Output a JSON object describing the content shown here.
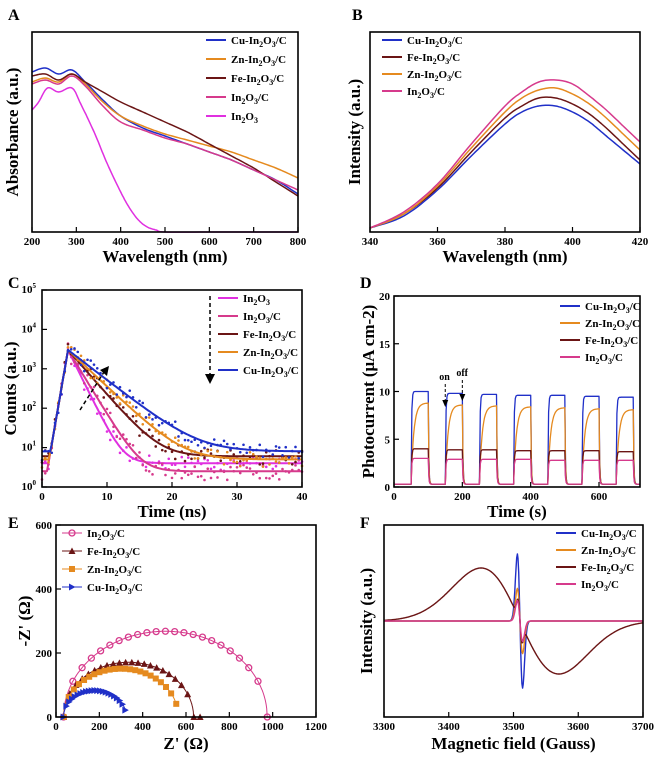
{
  "figure": {
    "panels": [
      "A",
      "B",
      "C",
      "D",
      "E",
      "F"
    ]
  },
  "colors": {
    "Cu": "#2030c8",
    "Zn": "#e58a1f",
    "Fe": "#6b1515",
    "InC": "#d63a8c",
    "In2O3": "#e030e0",
    "axis": "#000000"
  },
  "chart_data": [
    {
      "panel": "A",
      "type": "line",
      "xlabel": "Wavelength (nm)",
      "ylabel": "Absorbance (a.u.)",
      "xlim": [
        200,
        800
      ],
      "ylim": [
        0,
        1.0
      ],
      "xticks": [
        "200",
        "300",
        "400",
        "500",
        "600",
        "700",
        "800"
      ],
      "series": [
        {
          "key": "Cu",
          "name": "Cu-In2O3/C",
          "x": [
            200,
            230,
            260,
            290,
            320,
            360,
            400,
            450,
            500,
            550,
            600,
            650,
            700,
            750,
            800
          ],
          "y": [
            0.8,
            0.82,
            0.79,
            0.81,
            0.75,
            0.66,
            0.58,
            0.52,
            0.48,
            0.44,
            0.4,
            0.36,
            0.31,
            0.26,
            0.19
          ]
        },
        {
          "key": "Zn",
          "name": "Zn-In2O3/C",
          "x": [
            200,
            230,
            260,
            290,
            320,
            360,
            400,
            450,
            500,
            550,
            600,
            650,
            700,
            750,
            800
          ],
          "y": [
            0.75,
            0.77,
            0.75,
            0.79,
            0.74,
            0.65,
            0.58,
            0.53,
            0.49,
            0.46,
            0.43,
            0.4,
            0.36,
            0.32,
            0.27
          ]
        },
        {
          "key": "Fe",
          "name": "Fe-In2O3/C",
          "x": [
            200,
            230,
            260,
            290,
            320,
            360,
            400,
            450,
            500,
            550,
            600,
            650,
            700,
            750,
            800
          ],
          "y": [
            0.78,
            0.79,
            0.76,
            0.79,
            0.75,
            0.7,
            0.65,
            0.6,
            0.55,
            0.5,
            0.44,
            0.38,
            0.32,
            0.25,
            0.18
          ]
        },
        {
          "key": "InC",
          "name": "In2O3/C",
          "x": [
            200,
            230,
            260,
            290,
            320,
            360,
            400,
            450,
            500,
            550,
            600,
            650,
            700,
            750,
            800
          ],
          "y": [
            0.74,
            0.76,
            0.74,
            0.78,
            0.73,
            0.63,
            0.55,
            0.51,
            0.47,
            0.44,
            0.4,
            0.36,
            0.31,
            0.26,
            0.21
          ]
        },
        {
          "key": "In2O3",
          "name": "In2O3",
          "x": [
            200,
            215,
            235,
            260,
            290,
            310,
            340,
            370,
            400,
            420,
            440,
            460,
            480,
            500,
            600,
            700,
            800
          ],
          "y": [
            0.61,
            0.65,
            0.72,
            0.7,
            0.72,
            0.64,
            0.5,
            0.34,
            0.2,
            0.12,
            0.06,
            0.025,
            0.01,
            0.0,
            0.0,
            0.0,
            0.0
          ]
        }
      ]
    },
    {
      "panel": "B",
      "type": "line",
      "xlabel": "Wavelength (nm)",
      "ylabel": "Intensity (a.u.)",
      "xlim": [
        340,
        420
      ],
      "ylim": [
        0,
        1.0
      ],
      "xticks": [
        "340",
        "360",
        "380",
        "400",
        "420"
      ],
      "series": [
        {
          "key": "Cu",
          "name": "Cu-In2O3/C",
          "peak": 0.63,
          "x": [
            340,
            350,
            360,
            370,
            380,
            385,
            390,
            395,
            400,
            405,
            410,
            415,
            420
          ],
          "y": [
            0.02,
            0.08,
            0.21,
            0.38,
            0.54,
            0.6,
            0.63,
            0.63,
            0.6,
            0.55,
            0.48,
            0.41,
            0.34
          ]
        },
        {
          "key": "Fe",
          "name": "Fe-In2O3/C",
          "x": [
            340,
            350,
            360,
            370,
            380,
            385,
            390,
            395,
            400,
            405,
            410,
            415,
            420
          ],
          "y": [
            0.02,
            0.09,
            0.22,
            0.4,
            0.57,
            0.63,
            0.67,
            0.67,
            0.64,
            0.59,
            0.52,
            0.44,
            0.36
          ]
        },
        {
          "key": "Zn",
          "name": "Zn-In2O3/C",
          "x": [
            340,
            350,
            360,
            370,
            380,
            385,
            390,
            395,
            400,
            405,
            410,
            415,
            420
          ],
          "y": [
            0.02,
            0.09,
            0.23,
            0.42,
            0.6,
            0.67,
            0.71,
            0.72,
            0.69,
            0.64,
            0.57,
            0.49,
            0.41
          ]
        },
        {
          "key": "InC",
          "name": "In2O3/C",
          "x": [
            340,
            350,
            360,
            370,
            380,
            385,
            390,
            395,
            400,
            405,
            410,
            415,
            420
          ],
          "y": [
            0.02,
            0.1,
            0.24,
            0.44,
            0.63,
            0.7,
            0.75,
            0.76,
            0.74,
            0.68,
            0.61,
            0.53,
            0.45
          ]
        }
      ]
    },
    {
      "panel": "C",
      "type": "line",
      "xlabel": "Time (ns)",
      "ylabel": "Counts (a.u.)",
      "yscale": "log",
      "xlim": [
        0,
        40
      ],
      "ylim": [
        1,
        100000
      ],
      "xticks": [
        "0",
        "10",
        "20",
        "30",
        "40"
      ],
      "yticks": [
        {
          "base": "10",
          "exp": "0",
          "v": 1
        },
        {
          "base": "10",
          "exp": "1",
          "v": 10
        },
        {
          "base": "10",
          "exp": "2",
          "v": 100
        },
        {
          "base": "10",
          "exp": "3",
          "v": 1000
        },
        {
          "base": "10",
          "exp": "4",
          "v": 10000
        },
        {
          "base": "10",
          "exp": "5",
          "v": 100000
        }
      ],
      "peak": {
        "t": 4,
        "counts": 3000
      },
      "series": [
        {
          "key": "In2O3",
          "name": "In2O3",
          "tau": 1.3,
          "floor": 4
        },
        {
          "key": "InC",
          "name": "In2O3/C",
          "tau": 1.6,
          "floor": 2.5
        },
        {
          "key": "Fe",
          "name": "Fe-In2O3/C",
          "tau": 2.3,
          "floor": 6
        },
        {
          "key": "Zn",
          "name": "Zn-In2O3/C",
          "tau": 2.8,
          "floor": 5
        },
        {
          "key": "Cu",
          "name": "Cu-In2O3/C",
          "tau": 3.4,
          "floor": 8
        }
      ]
    },
    {
      "panel": "D",
      "type": "line",
      "xlabel": "Time (s)",
      "ylabel": "Photocurrent (μA cm-2)",
      "xlim": [
        0,
        720
      ],
      "ylim": [
        0,
        20
      ],
      "xticks": [
        "0",
        "200",
        "400",
        "600"
      ],
      "yticks": [
        "0",
        "5",
        "10",
        "15",
        "20"
      ],
      "period": 100,
      "on_duration": 50,
      "first_on": 50,
      "annotations": {
        "on": "on",
        "off": "off",
        "on_time": 150,
        "off_time": 200
      },
      "series": [
        {
          "key": "Cu",
          "name": "Cu-In2O3/C",
          "plateaus": [
            10.0,
            9.8,
            9.7,
            9.6,
            9.6,
            9.5,
            9.4
          ]
        },
        {
          "key": "Zn",
          "name": "Zn-In2O3/C",
          "plateaus": [
            8.8,
            8.6,
            8.5,
            8.4,
            8.3,
            8.2,
            8.1
          ]
        },
        {
          "key": "Fe",
          "name": "Fe-In2O3/C",
          "plateaus": [
            4.0,
            3.9,
            3.9,
            3.8,
            3.8,
            3.8,
            3.7
          ]
        },
        {
          "key": "InC",
          "name": "In2O3/C",
          "plateaus": [
            3.0,
            2.9,
            2.9,
            2.9,
            2.8,
            2.8,
            2.8
          ]
        }
      ]
    },
    {
      "panel": "E",
      "type": "scatter",
      "xlabel": "Z' (Ω)",
      "ylabel": "-Z' (Ω)",
      "xlim": [
        0,
        1200
      ],
      "ylim": [
        0,
        600
      ],
      "xticks": [
        "0",
        "200",
        "400",
        "600",
        "800",
        "1000",
        "1200"
      ],
      "yticks": [
        "0",
        "200",
        "400",
        "600"
      ],
      "series": [
        {
          "key": "InC",
          "name": "In2O3/C",
          "marker": "circle",
          "center": 505,
          "radius": 470,
          "start": 35,
          "end": 975
        },
        {
          "key": "Fe",
          "name": "Fe-In2O3/C",
          "marker": "triangle-up",
          "center": 335,
          "radius": 300,
          "start": 35,
          "end": 665
        },
        {
          "key": "Zn",
          "name": "Zn-In2O3/C",
          "marker": "square",
          "center": 300,
          "radius": 265,
          "start": 35,
          "end": 555
        },
        {
          "key": "Cu",
          "name": "Cu-In2O3/C",
          "marker": "triangle-right",
          "center": 180,
          "radius": 145,
          "start": 35,
          "end": 320
        }
      ]
    },
    {
      "panel": "F",
      "type": "line",
      "xlabel": "Magnetic field (Gauss)",
      "ylabel": "Intensity (a.u.)",
      "xlim": [
        3300,
        3700
      ],
      "ylim": [
        -1.0,
        1.0
      ],
      "xticks": [
        "3300",
        "3400",
        "3500",
        "3600",
        "3700"
      ],
      "series": [
        {
          "key": "Cu",
          "name": "Cu-In2O3/C",
          "center": 3510,
          "amplitude": 0.72,
          "width": 4
        },
        {
          "key": "Zn",
          "name": "Zn-In2O3/C",
          "center": 3510,
          "amplitude": 0.35,
          "width": 4
        },
        {
          "key": "Fe",
          "name": "Fe-In2O3/C",
          "center": 3510,
          "broad": true
        },
        {
          "key": "InC",
          "name": "In2O3/C",
          "center": 3510,
          "amplitude": 0.22,
          "width": 4
        }
      ]
    }
  ]
}
